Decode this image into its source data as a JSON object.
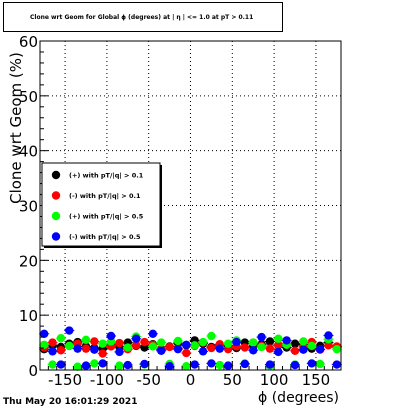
{
  "title": "Clone wrt Geom for Global ϕ (degrees) at | η | <= 1.0 at pT > 0.11",
  "timestamp": "Thu May 20 16:01:29 2021",
  "chart_data": {
    "type": "scatter",
    "title": "Clone wrt Geom for Global ϕ (degrees) at | η | <= 1.0 at pT > 0.11",
    "xlabel": "ϕ (degrees)",
    "ylabel": "Clone wrt Geom (%)",
    "xlim": [
      -180,
      180
    ],
    "ylim": [
      0,
      60
    ],
    "xticks": [
      -150,
      -100,
      -50,
      0,
      50,
      100,
      150
    ],
    "yticks": [
      0,
      10,
      20,
      30,
      40,
      50,
      60
    ],
    "grid": true,
    "legend_position": "middle-left",
    "x": [
      -175,
      -165,
      -155,
      -145,
      -135,
      -125,
      -115,
      -105,
      -95,
      -85,
      -75,
      -65,
      -55,
      -45,
      -35,
      -25,
      -15,
      -5,
      5,
      15,
      25,
      35,
      45,
      55,
      65,
      75,
      85,
      95,
      105,
      115,
      125,
      135,
      145,
      155,
      165,
      175
    ],
    "series": [
      {
        "name": "(+) with pT/|q| > 0.1",
        "color": "#000000",
        "values": [
          3.8,
          4.5,
          4.2,
          4.8,
          5.1,
          4.3,
          4.0,
          3.9,
          4.6,
          4.2,
          5.0,
          4.4,
          4.1,
          4.7,
          3.8,
          4.3,
          4.9,
          4.5,
          5.4,
          4.8,
          4.2,
          4.6,
          4.4,
          4.0,
          5.0,
          4.3,
          4.7,
          5.2,
          4.5,
          4.1,
          4.8,
          4.6,
          3.9,
          4.4,
          5.0,
          4.2
        ]
      },
      {
        "name": "(-) with pT/|q| > 0.1",
        "color": "#ff0000",
        "values": [
          4.1,
          5.0,
          3.6,
          4.4,
          4.8,
          3.9,
          5.2,
          3.0,
          4.3,
          4.9,
          3.8,
          4.5,
          5.1,
          4.6,
          3.7,
          4.2,
          3.9,
          3.1,
          4.4,
          5.0,
          4.0,
          4.7,
          3.8,
          4.3,
          4.1,
          5.0,
          4.4,
          3.9,
          4.6,
          4.8,
          3.5,
          4.2,
          5.1,
          3.7,
          4.5,
          4.3
        ]
      },
      {
        "name": "(+) with pT/|q| > 0.5",
        "color": "#00ff00",
        "values": [
          4.6,
          1.0,
          5.8,
          4.4,
          0.6,
          5.5,
          1.2,
          4.8,
          5.2,
          0.8,
          4.1,
          6.1,
          1.0,
          4.3,
          5.0,
          1.1,
          5.3,
          0.7,
          4.5,
          5.1,
          6.2,
          0.9,
          4.8,
          5.4,
          1.2,
          5.0,
          4.2,
          0.8,
          5.7,
          4.6,
          1.0,
          5.2,
          4.4,
          1.1,
          5.6,
          3.8
        ]
      },
      {
        "name": "(-) with pT/|q| > 0.5",
        "color": "#0000ff",
        "values": [
          6.6,
          3.4,
          1.0,
          7.2,
          3.9,
          0.8,
          3.7,
          1.2,
          6.2,
          3.3,
          0.9,
          5.7,
          1.1,
          6.6,
          3.5,
          0.7,
          3.8,
          4.6,
          1.0,
          3.4,
          1.2,
          3.9,
          0.8,
          5.1,
          1.1,
          3.6,
          6.0,
          1.0,
          3.3,
          5.4,
          0.9,
          3.7,
          1.2,
          3.8,
          6.3,
          1.0
        ]
      }
    ]
  }
}
